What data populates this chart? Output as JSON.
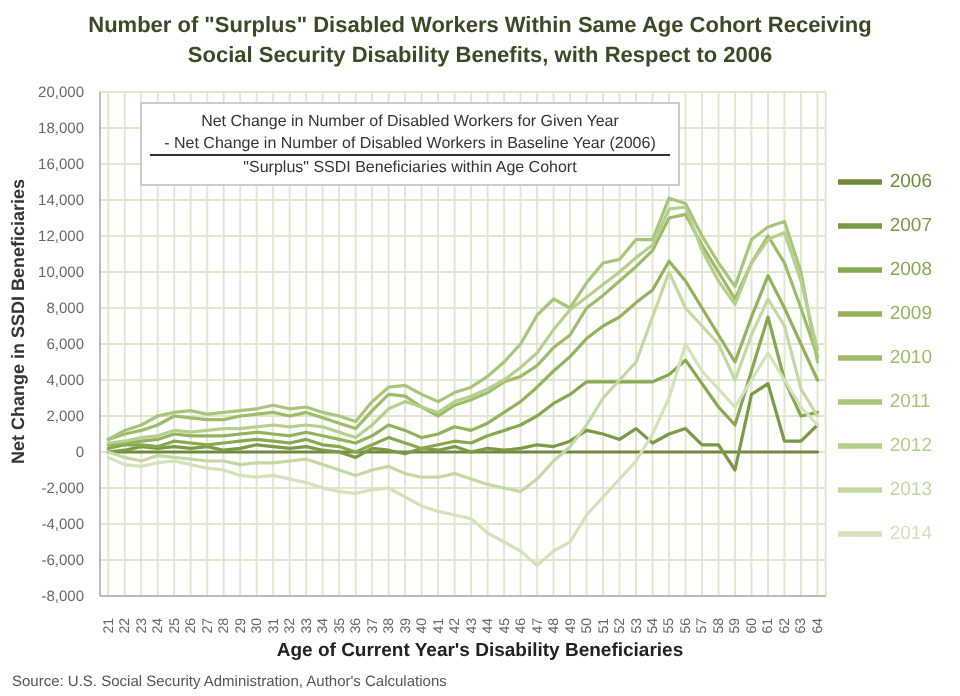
{
  "chart_data": {
    "type": "line",
    "title": "Number of \"Surplus\" Disabled Workers Within Same Age Cohort Receiving Social Security Disability Benefits, with Respect to 2006",
    "xlabel": "Age of Current Year's Disability Beneficiaries",
    "ylabel": "Net Change in SSDI Beneficiaries",
    "categories": [
      "21",
      "22",
      "23",
      "24",
      "25",
      "26",
      "27",
      "28",
      "29",
      "30",
      "31",
      "32",
      "33",
      "34",
      "35",
      "36",
      "37",
      "38",
      "39",
      "40",
      "41",
      "42",
      "43",
      "44",
      "45",
      "46",
      "47",
      "48",
      "49",
      "50",
      "51",
      "52",
      "53",
      "54",
      "55",
      "56",
      "57",
      "58",
      "59",
      "60",
      "61",
      "62",
      "63",
      "64"
    ],
    "series": [
      {
        "name": "2006",
        "color": "#6e8b3d",
        "values": [
          0,
          0,
          0,
          0,
          0,
          0,
          0,
          0,
          0,
          0,
          0,
          0,
          0,
          0,
          0,
          0,
          0,
          0,
          0,
          0,
          0,
          0,
          0,
          0,
          0,
          0,
          0,
          0,
          0,
          0,
          0,
          0,
          0,
          0,
          0,
          0,
          0,
          0,
          0,
          0,
          0,
          0,
          0,
          0
        ]
      },
      {
        "name": "2007",
        "color": "#7a9a45",
        "values": [
          0,
          100,
          300,
          200,
          300,
          200,
          300,
          100,
          200,
          400,
          300,
          200,
          300,
          100,
          0,
          -300,
          200,
          100,
          -100,
          200,
          100,
          300,
          0,
          200,
          100,
          200,
          400,
          300,
          600,
          1200,
          1000,
          700,
          1300,
          500,
          1000,
          1300,
          400,
          400,
          -1000,
          3200,
          3800,
          600,
          600,
          1500
        ]
      },
      {
        "name": "2008",
        "color": "#86a84f",
        "values": [
          200,
          400,
          400,
          300,
          600,
          500,
          400,
          500,
          600,
          700,
          600,
          500,
          700,
          400,
          300,
          0,
          400,
          800,
          500,
          200,
          400,
          600,
          500,
          900,
          1200,
          1500,
          2000,
          2700,
          3200,
          3900,
          3900,
          3900,
          3900,
          3900,
          4300,
          5100,
          3800,
          2500,
          1500,
          4500,
          7500,
          4000,
          2000,
          2200
        ]
      },
      {
        "name": "2009",
        "color": "#92b35c",
        "values": [
          400,
          500,
          600,
          700,
          1000,
          900,
          900,
          900,
          1000,
          1100,
          1000,
          900,
          1100,
          900,
          700,
          500,
          900,
          1500,
          1200,
          800,
          1000,
          1400,
          1200,
          1600,
          2200,
          2800,
          3600,
          4500,
          5300,
          6300,
          7000,
          7500,
          8300,
          9000,
          10600,
          9500,
          8000,
          6500,
          5000,
          7500,
          9800,
          8000,
          6000,
          4000
        ]
      },
      {
        "name": "2010",
        "color": "#9cbc68",
        "values": [
          700,
          1000,
          1200,
          1500,
          2000,
          1900,
          1800,
          1800,
          2000,
          2100,
          2200,
          2000,
          2200,
          1900,
          1600,
          1300,
          2300,
          3200,
          3100,
          2500,
          2000,
          2600,
          2900,
          3300,
          3900,
          4200,
          4800,
          5800,
          6500,
          8000,
          8700,
          9500,
          10300,
          11200,
          13000,
          13200,
          11500,
          10000,
          8500,
          10500,
          12000,
          10500,
          8000,
          5300
        ]
      },
      {
        "name": "2011",
        "color": "#a8c67a",
        "values": [
          700,
          1200,
          1500,
          2000,
          2200,
          2300,
          2100,
          2200,
          2300,
          2400,
          2600,
          2400,
          2500,
          2200,
          2000,
          1700,
          2800,
          3600,
          3700,
          3200,
          2800,
          3300,
          3600,
          4200,
          5000,
          6000,
          7600,
          8500,
          8000,
          9400,
          10500,
          10700,
          11800,
          11800,
          14100,
          13800,
          12000,
          10500,
          9200,
          11800,
          12500,
          12800,
          10000,
          5000
        ]
      },
      {
        "name": "2012",
        "color": "#b5cf8c",
        "values": [
          500,
          600,
          800,
          900,
          1200,
          1100,
          1200,
          1300,
          1300,
          1400,
          1500,
          1400,
          1500,
          1400,
          1100,
          800,
          1500,
          2400,
          2800,
          2500,
          2200,
          2800,
          3100,
          3500,
          4000,
          4700,
          5500,
          6800,
          7900,
          8600,
          9300,
          10000,
          10800,
          11500,
          13500,
          13600,
          11200,
          9500,
          8200,
          10500,
          11800,
          12200,
          9500,
          5700
        ]
      },
      {
        "name": "2013",
        "color": "#c4d9a2",
        "values": [
          0,
          -300,
          -500,
          -200,
          -300,
          -400,
          -500,
          -500,
          -700,
          -600,
          -600,
          -500,
          -400,
          -700,
          -1000,
          -1300,
          -1000,
          -800,
          -1200,
          -1400,
          -1400,
          -1200,
          -1500,
          -1800,
          -2000,
          -2200,
          -1500,
          -500,
          300,
          1500,
          3000,
          4000,
          5000,
          7500,
          10000,
          8000,
          7000,
          6000,
          4000,
          6500,
          8500,
          7000,
          3500,
          2000
        ]
      },
      {
        "name": "2014",
        "color": "#d3e2b9",
        "values": [
          -300,
          -700,
          -800,
          -600,
          -500,
          -700,
          -900,
          -1000,
          -1300,
          -1400,
          -1300,
          -1500,
          -1700,
          -2000,
          -2200,
          -2300,
          -2100,
          -2000,
          -2500,
          -3000,
          -3300,
          -3500,
          -3700,
          -4500,
          -5000,
          -5500,
          -6300,
          -5500,
          -5000,
          -3500,
          -2500,
          -1500,
          -500,
          1000,
          3000,
          6000,
          4500,
          3500,
          2500,
          4000,
          5500,
          4000,
          2500,
          1500
        ]
      }
    ],
    "ylim": [
      -8000,
      20000
    ],
    "yticks": [
      {
        "value": -8000,
        "label": "-8,000"
      },
      {
        "value": -6000,
        "label": "-6,000"
      },
      {
        "value": -4000,
        "label": "-4,000"
      },
      {
        "value": -2000,
        "label": "-2,000"
      },
      0,
      {
        "value": 2000,
        "label": "2,000"
      },
      {
        "value": 4000,
        "label": "4,000"
      },
      {
        "value": 6000,
        "label": "6,000"
      },
      {
        "value": 8000,
        "label": "8,000"
      },
      {
        "value": 10000,
        "label": "10,000"
      },
      {
        "value": 12000,
        "label": "12,000"
      },
      {
        "value": 14000,
        "label": "14,000"
      },
      {
        "value": 16000,
        "label": "16,000"
      },
      {
        "value": 18000,
        "label": "18,000"
      },
      {
        "value": 20000,
        "label": "20,000"
      }
    ],
    "annotations": [
      "Net Change in Number of Disabled Workers for Given Year",
      "- Net Change in Number of Disabled Workers in Baseline Year (2006)",
      "\"Surplus\" SSDI Beneficiaries within Age Cohort",
      "Source: U.S. Social Security Administration, Author's Calculations"
    ],
    "grid": true,
    "legend": "right",
    "marker": "none",
    "line_style": "solid"
  }
}
